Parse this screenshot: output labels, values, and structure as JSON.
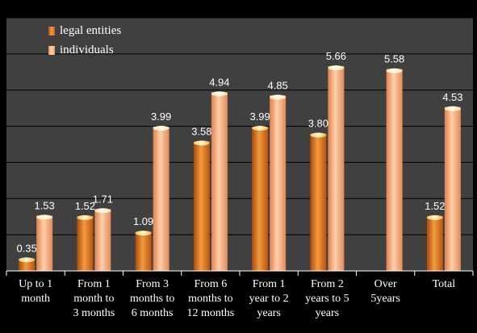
{
  "chart_data": {
    "type": "bar",
    "categories": [
      "Up to 1\nmonth",
      "From 1\nmonth to\n3 months",
      "From 3\nmonths to\n6 months",
      "From 6\nmonths to\n12 months",
      "From 1\nyear to 2\nyears",
      "From 2\nyears to 5\nyears",
      "Over\n5years",
      "Total"
    ],
    "series": [
      {
        "name": "legal entities",
        "values": [
          0.35,
          1.52,
          1.09,
          3.58,
          3.99,
          3.8,
          null,
          1.52
        ],
        "labels": [
          "0.35",
          "1.52",
          "1.09",
          "3.58",
          "3.99",
          "3.80",
          "",
          "1.52"
        ]
      },
      {
        "name": "individuals",
        "values": [
          1.53,
          1.71,
          3.99,
          4.94,
          4.85,
          5.66,
          5.58,
          4.53
        ],
        "labels": [
          "1.53",
          "1.71",
          "3.99",
          "4.94",
          "4.85",
          "5.66",
          "5.58",
          "4.53"
        ]
      }
    ],
    "ylim": [
      0,
      7
    ],
    "grid": true,
    "legend_position": "top-left",
    "colors": {
      "legal": "#e8782a",
      "individuals": "#f5b48a",
      "plot_bg": "#404040",
      "grid": "#000000",
      "text": "#ffffff"
    }
  }
}
